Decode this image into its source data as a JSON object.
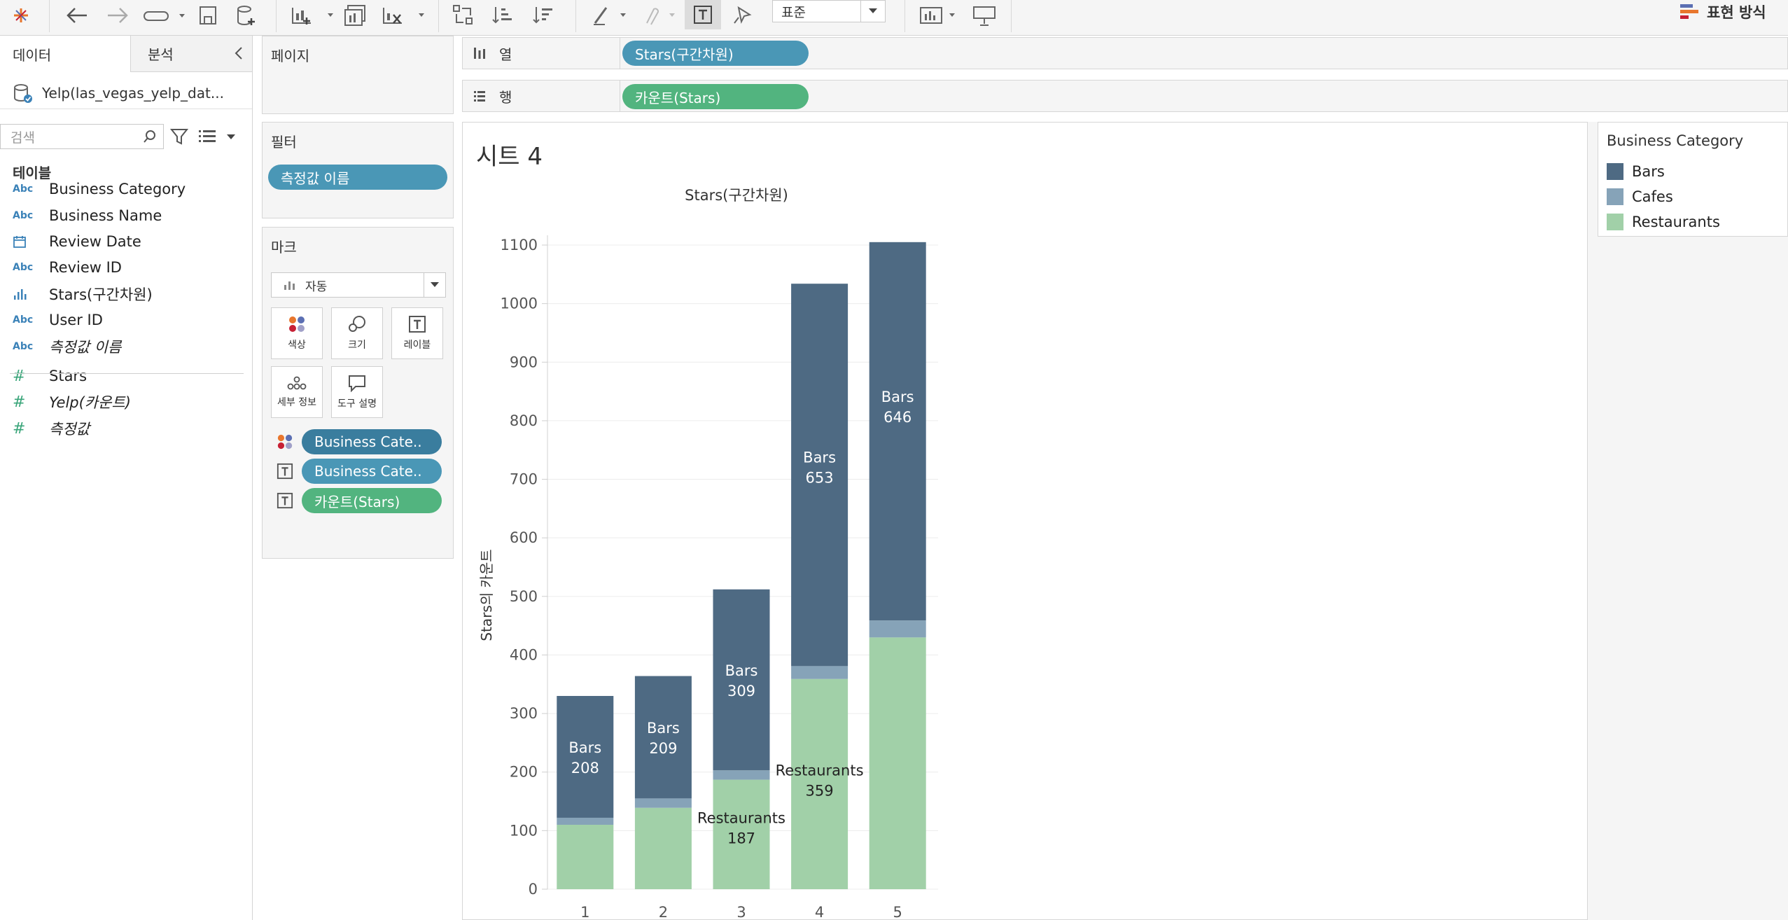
{
  "toolbar": {
    "format_select": "표준",
    "show_me": "표현 방식"
  },
  "data_pane": {
    "tab_data": "데이터",
    "tab_analysis": "분석",
    "datasource": "Yelp(las_vegas_yelp_dat...",
    "search_placeholder": "검색",
    "tables_header": "테이블",
    "fields": [
      {
        "type": "Abc",
        "name": "Business Category"
      },
      {
        "type": "Abc",
        "name": "Business Name"
      },
      {
        "type": "date",
        "name": "Review Date"
      },
      {
        "type": "Abc",
        "name": "Review ID"
      },
      {
        "type": "bin",
        "name": "Stars(구간차원)"
      },
      {
        "type": "Abc",
        "name": "User ID"
      },
      {
        "type": "Abc",
        "name": "측정값 이름"
      },
      {
        "type": "#",
        "name": "Stars"
      },
      {
        "type": "#",
        "name": "Yelp(카운트)"
      },
      {
        "type": "#",
        "name": "측정값"
      }
    ]
  },
  "pages": {
    "title": "페이지"
  },
  "filters": {
    "title": "필터",
    "pills": [
      "측정값 이름"
    ]
  },
  "marks": {
    "title": "마크",
    "mark_type": "자동",
    "buttons": [
      "색상",
      "크기",
      "레이블",
      "세부 정보",
      "도구 설명"
    ],
    "pills": [
      "Business Cate..",
      "Business Cate..",
      "카운트(Stars)"
    ]
  },
  "shelves": {
    "columns_label": "열",
    "columns_pill": "Stars(구간차원)",
    "rows_label": "행",
    "rows_pill": "카운트(Stars)"
  },
  "sheet": {
    "title": "시트 4"
  },
  "legend": {
    "title": "Business Category",
    "items": [
      {
        "name": "Bars",
        "color": "#4e6a83"
      },
      {
        "name": "Cafes",
        "color": "#86a3b8"
      },
      {
        "name": "Restaurants",
        "color": "#a1d0a8"
      }
    ]
  },
  "chart_data": {
    "type": "bar",
    "stacked": true,
    "title": "Stars(구간차원)",
    "xlabel": "",
    "ylabel": "Stars의 카운트",
    "categories": [
      "1",
      "2",
      "3",
      "4",
      "5"
    ],
    "ylim": [
      0,
      1100
    ],
    "yticks": [
      0,
      100,
      200,
      300,
      400,
      500,
      600,
      700,
      800,
      900,
      1000,
      1100
    ],
    "series": [
      {
        "name": "Restaurants",
        "color": "#a1d0a8",
        "values": [
          110,
          139,
          187,
          359,
          430
        ]
      },
      {
        "name": "Cafes",
        "color": "#86a3b8",
        "values": [
          12,
          16,
          16,
          22,
          29
        ]
      },
      {
        "name": "Bars",
        "color": "#4e6a83",
        "values": [
          208,
          209,
          309,
          653,
          646
        ]
      }
    ],
    "bar_labels": [
      {
        "category": "1",
        "series": "Bars",
        "name": "Bars",
        "value": "208"
      },
      {
        "category": "2",
        "series": "Bars",
        "name": "Bars",
        "value": "209"
      },
      {
        "category": "3",
        "series": "Bars",
        "name": "Bars",
        "value": "309"
      },
      {
        "category": "3",
        "series": "Restaurants",
        "name": "Restaurants",
        "value": "187"
      },
      {
        "category": "4",
        "series": "Bars",
        "name": "Bars",
        "value": "653"
      },
      {
        "category": "4",
        "series": "Restaurants",
        "name": "Restaurants",
        "value": "359"
      },
      {
        "category": "5",
        "series": "Bars",
        "name": "Bars",
        "value": "646"
      }
    ]
  }
}
